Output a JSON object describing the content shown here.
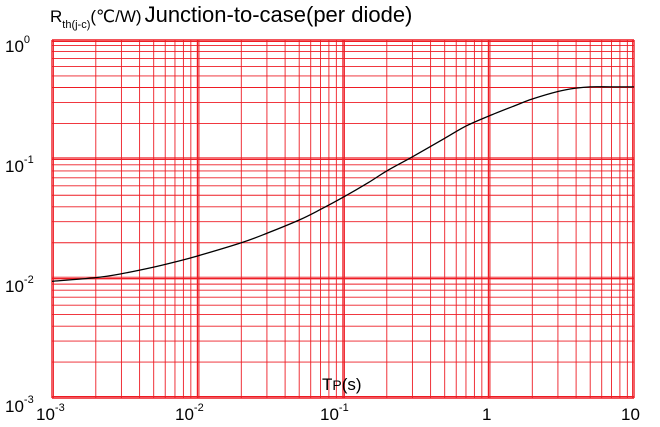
{
  "chart_data": {
    "type": "line",
    "title": "Junction-to-case(per diode)",
    "ylabel": {
      "symbol": "R",
      "subscript": "th(j-c)",
      "unit": "(℃/W)"
    },
    "xlabel": {
      "symbol": "T",
      "subscript": "P",
      "unit": "(s)"
    },
    "x_scale": "log",
    "y_scale": "log",
    "xlim": [
      0.001,
      10
    ],
    "ylim": [
      0.001,
      1
    ],
    "grid": true,
    "colors": {
      "grid": "#ee1c24",
      "curve": "#000000",
      "background": "#ffffff"
    },
    "x_ticks": [
      {
        "base": "10",
        "exp": "-3"
      },
      {
        "base": "10",
        "exp": "-2"
      },
      {
        "base": "10",
        "exp": "-1"
      },
      {
        "base": "1",
        "exp": ""
      },
      {
        "base": "10",
        "exp": ""
      }
    ],
    "y_ticks": [
      {
        "base": "10",
        "exp": "0"
      },
      {
        "base": "10",
        "exp": "-1"
      },
      {
        "base": "10",
        "exp": "-2"
      },
      {
        "base": "10",
        "exp": "-3"
      }
    ],
    "series": [
      {
        "x": [
          0.001,
          0.002,
          0.003,
          0.005,
          0.007,
          0.01,
          0.02,
          0.03,
          0.05,
          0.07,
          0.1,
          0.15,
          0.2,
          0.3,
          0.5,
          0.7,
          1.0,
          1.5,
          2.0,
          3.0,
          4.0,
          5.0,
          7.0,
          10.0
        ],
        "y": [
          0.0095,
          0.0102,
          0.011,
          0.0125,
          0.0138,
          0.0155,
          0.02,
          0.024,
          0.031,
          0.038,
          0.048,
          0.064,
          0.08,
          0.105,
          0.15,
          0.19,
          0.23,
          0.28,
          0.32,
          0.37,
          0.395,
          0.405,
          0.405,
          0.405
        ]
      }
    ]
  }
}
